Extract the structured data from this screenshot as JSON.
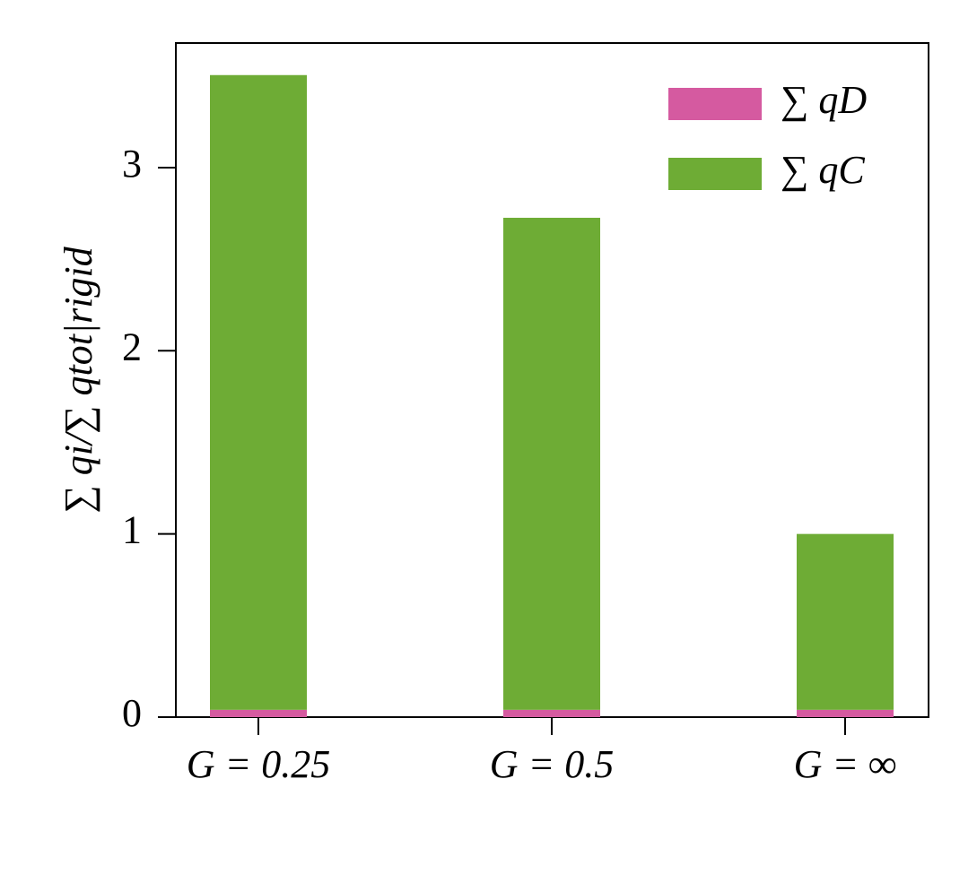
{
  "chart_data": {
    "type": "stacked_bar",
    "categories": [
      "G = 0.25",
      "G = 0.5",
      "G = ∞"
    ],
    "series": [
      {
        "name": "∑ qD",
        "color": "#d55aa0",
        "values": [
          0.04,
          0.04,
          0.04
        ]
      },
      {
        "name": "∑ qC",
        "color": "#6eac35",
        "values": [
          3.465,
          2.686,
          0.96
        ]
      }
    ],
    "y_label": "∑ qi/∑ qtot|rigid",
    "ylim": [
      0,
      3.68
    ],
    "yticks": [
      0,
      1,
      2,
      3
    ],
    "legend": "upper right",
    "grid": false
  }
}
